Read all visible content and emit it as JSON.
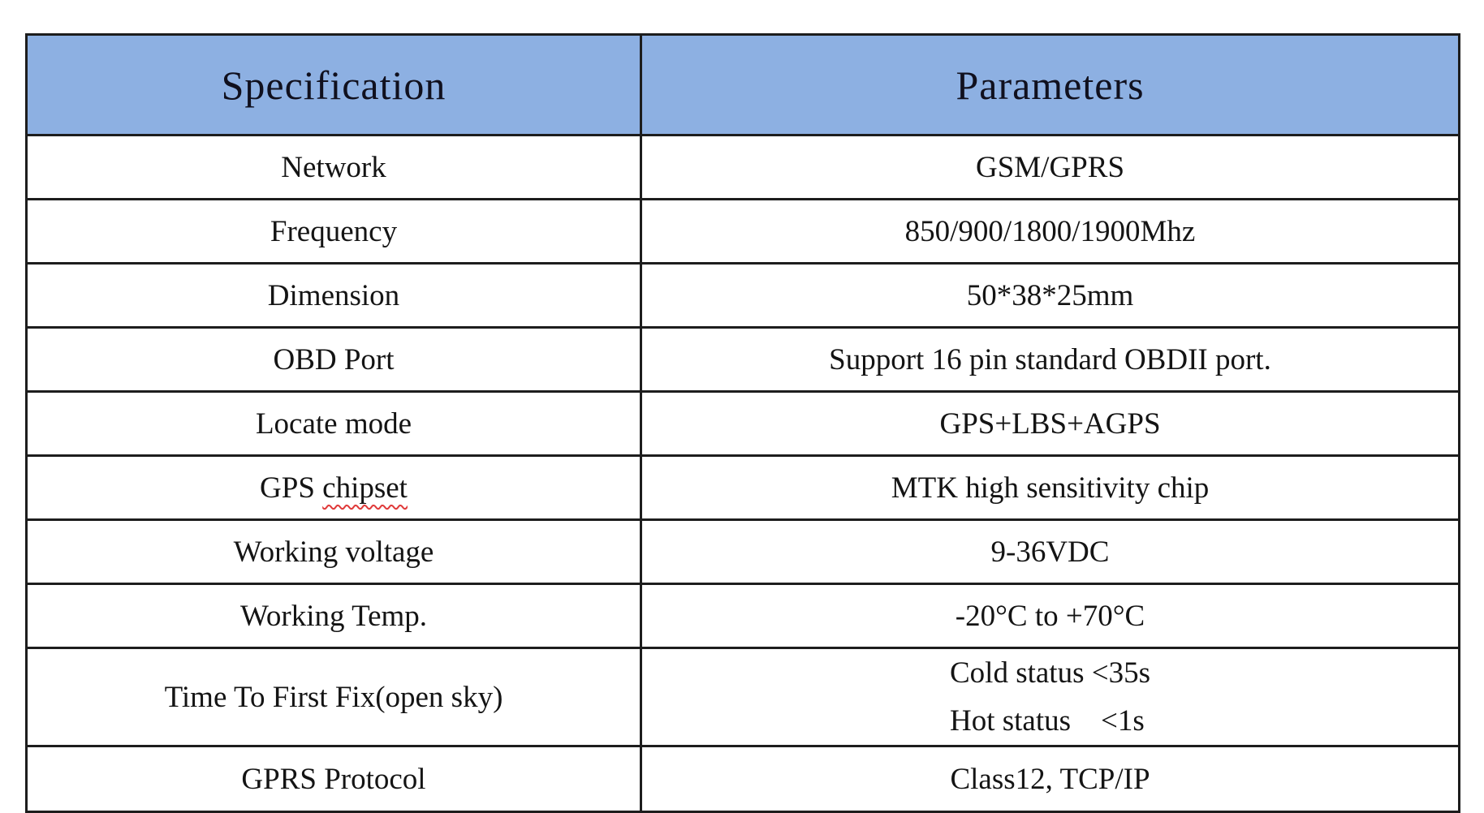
{
  "table": {
    "header_bg": "#8db0e2",
    "border_color": "#1d1d1d",
    "squiggle_color": "#e03a3a",
    "columns": [
      {
        "label": "Specification"
      },
      {
        "label": "Parameters"
      }
    ],
    "rows": [
      {
        "spec": "Network",
        "value": "GSM/GPRS"
      },
      {
        "spec": "Frequency",
        "value": "850/900/1800/1900Mhz"
      },
      {
        "spec": "Dimension",
        "value": "50*38*25mm"
      },
      {
        "spec": "OBD Port",
        "value": "Support 16 pin standard OBDII port."
      },
      {
        "spec": "Locate mode",
        "value": "GPS+LBS+AGPS"
      },
      {
        "spec_prefix": "GPS ",
        "spec_misspelled": "chipset",
        "value": "MTK high sensitivity chip"
      },
      {
        "spec": "Working voltage",
        "value": "9-36VDC"
      },
      {
        "spec": "Working Temp.",
        "value": "-20°C to +70°C"
      },
      {
        "spec": "Time To First Fix(open sky)",
        "value_lines": [
          "Cold status <35s",
          "Hot status    <1s"
        ]
      },
      {
        "spec": "GPRS Protocol",
        "value": "Class12, TCP/IP"
      }
    ]
  }
}
